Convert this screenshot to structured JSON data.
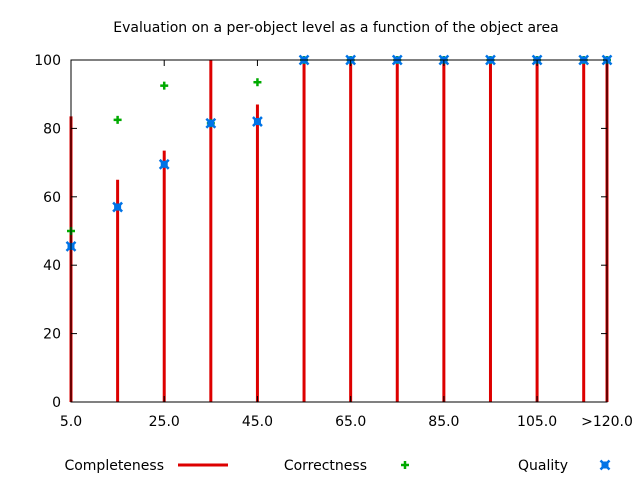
{
  "chart_data": {
    "type": "scatter",
    "title": "Evaluation on a per-object level as a function of the object area",
    "xlabel": "",
    "ylabel": "",
    "x": [
      5,
      15,
      25,
      35,
      45,
      55,
      65,
      75,
      85,
      95,
      105,
      115,
      120
    ],
    "xlim": [
      5,
      120
    ],
    "ylim": [
      0,
      100
    ],
    "x_ticks": [
      5,
      25,
      45,
      65,
      85,
      105,
      120
    ],
    "x_tick_labels": [
      "5.0",
      "25.0",
      "45.0",
      "65.0",
      "85.0",
      "105.0",
      ">120.0"
    ],
    "y_ticks": [
      0,
      20,
      40,
      60,
      80,
      100
    ],
    "y_tick_labels": [
      "0",
      "20",
      "40",
      "60",
      "80",
      "100"
    ],
    "grid": false,
    "legend_position": "bottom",
    "series": [
      {
        "name": "Completeness",
        "style": "impulses",
        "color": "#dd0000",
        "values": [
          83.5,
          65,
          73.5,
          100,
          87,
          100,
          100,
          100,
          100,
          100,
          100,
          100,
          100
        ]
      },
      {
        "name": "Correctness",
        "style": "plus",
        "color": "#00aa00",
        "values": [
          50,
          82.5,
          92.5,
          81.5,
          93.5,
          100,
          100,
          100,
          100,
          100,
          100,
          100,
          100
        ]
      },
      {
        "name": "Quality",
        "style": "x-square",
        "color": "#0073e6",
        "values": [
          45.5,
          57,
          69.5,
          81.5,
          82,
          100,
          100,
          100,
          100,
          100,
          100,
          100,
          100
        ]
      }
    ]
  }
}
